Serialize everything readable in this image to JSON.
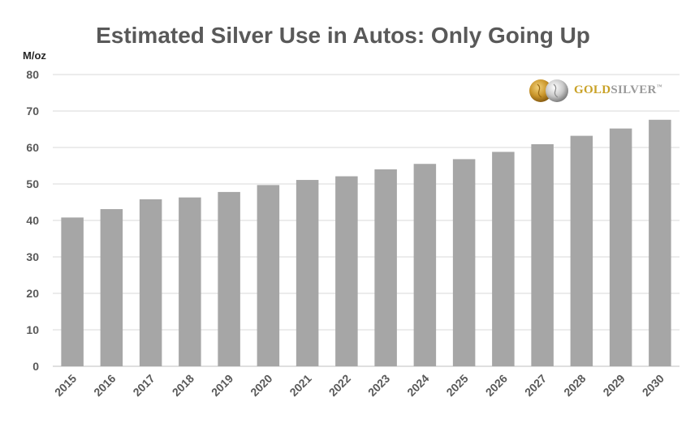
{
  "chart_data": {
    "type": "bar",
    "title": "Estimated Silver Use in Autos: Only Going Up",
    "ylabel": "M/oz",
    "xlabel": "",
    "categories": [
      "2015",
      "2016",
      "2017",
      "2018",
      "2019",
      "2020",
      "2021",
      "2022",
      "2023",
      "2024",
      "2025",
      "2026",
      "2027",
      "2028",
      "2029",
      "2030"
    ],
    "values": [
      40.8,
      43.1,
      45.8,
      46.3,
      47.8,
      49.7,
      51.1,
      52.1,
      54.0,
      55.5,
      56.8,
      58.8,
      60.9,
      63.2,
      65.2,
      67.6
    ],
    "ylim": [
      0,
      80
    ],
    "yticks": [
      0,
      10,
      20,
      30,
      40,
      50,
      60,
      70,
      80
    ],
    "grid": true,
    "bar_color": "#a6a6a6",
    "grid_color": "#d9d9d9"
  },
  "logo": {
    "text_gold": "GOLD",
    "text_silver": "SILVER",
    "mark": "™",
    "gold_color": "#c9a227",
    "silver_color": "#9a9a9a"
  }
}
